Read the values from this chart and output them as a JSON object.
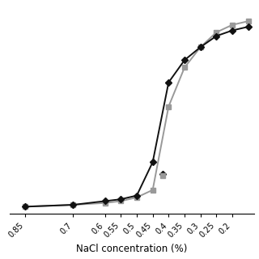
{
  "xlabel": "NaCl concentration (%)",
  "xlim": [
    0.9,
    0.13
  ],
  "ylim": [
    -0.03,
    1.1
  ],
  "xticks": [
    0.85,
    0.7,
    0.6,
    0.55,
    0.5,
    0.45,
    0.4,
    0.35,
    0.3,
    0.25,
    0.2
  ],
  "xtick_labels": [
    "0.85",
    "0.7",
    "0.6",
    "0.55",
    "0.5",
    "0.45",
    "0.4",
    "0.35",
    "0.3",
    "0.25",
    "0.2"
  ],
  "series1": {
    "x": [
      0.85,
      0.7,
      0.6,
      0.55,
      0.5,
      0.45,
      0.4,
      0.35,
      0.3,
      0.25,
      0.2,
      0.15
    ],
    "y": [
      0.01,
      0.02,
      0.04,
      0.05,
      0.07,
      0.25,
      0.68,
      0.8,
      0.87,
      0.93,
      0.96,
      0.98
    ],
    "color": "#111111",
    "marker": "D",
    "markersize": 4,
    "linewidth": 1.4
  },
  "series2": {
    "x": [
      0.85,
      0.7,
      0.6,
      0.55,
      0.5,
      0.45,
      0.4,
      0.35,
      0.3,
      0.25,
      0.2,
      0.15
    ],
    "y": [
      0.01,
      0.02,
      0.03,
      0.04,
      0.06,
      0.1,
      0.55,
      0.76,
      0.87,
      0.95,
      0.99,
      1.01
    ],
    "color": "#999999",
    "marker": "s",
    "markersize": 4,
    "linewidth": 1.4
  },
  "background_color": "#ffffff",
  "tick_fontsize": 7,
  "label_fontsize": 8.5,
  "tick_rotation": 45
}
